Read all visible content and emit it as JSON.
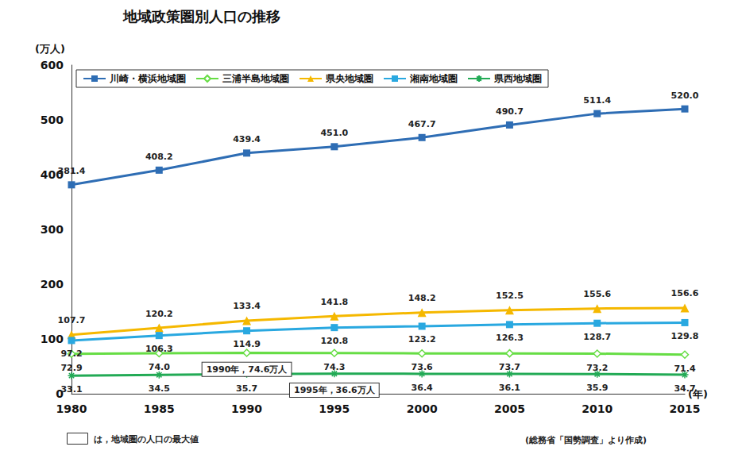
{
  "chart_data": {
    "type": "line",
    "title": "地域政策圏別人口の推移",
    "y_label": "(万人)",
    "x_label": "(年)",
    "note": "は，地域圏の人口の最大値",
    "source": "(総務省「国勢調査」より作成)",
    "categories": [
      "1980",
      "1985",
      "1990",
      "1995",
      "2000",
      "2005",
      "2010",
      "2015"
    ],
    "series": [
      {
        "name": "川崎・横浜地域圏",
        "color": "#2e6db4",
        "marker": "square",
        "values": [
          381.4,
          408.2,
          439.4,
          451.0,
          467.7,
          490.7,
          511.4,
          520.0
        ],
        "value_labels": [
          "381.4",
          "408.2",
          "439.4",
          "451.0",
          "467.7",
          "490.7",
          "511.4",
          "520.0"
        ]
      },
      {
        "name": "三浦半島地域圏",
        "color": "#66dd44",
        "marker": "diamond",
        "values": [
          72.9,
          74.0,
          74.6,
          74.3,
          73.6,
          73.7,
          73.2,
          71.4
        ],
        "value_labels": [
          "72.9",
          "74.0",
          "1990年，74.6万人",
          "74.3",
          "73.6",
          "73.7",
          "73.2",
          "71.4"
        ]
      },
      {
        "name": "県央地域圏",
        "color": "#f5b800",
        "marker": "triangle",
        "values": [
          107.7,
          120.2,
          133.4,
          141.8,
          148.2,
          152.5,
          155.6,
          156.6
        ],
        "value_labels": [
          "107.7",
          "120.2",
          "133.4",
          "141.8",
          "148.2",
          "152.5",
          "155.6",
          "156.6"
        ]
      },
      {
        "name": "湘南地域圏",
        "color": "#29a8e0",
        "marker": "square",
        "values": [
          97.2,
          106.3,
          114.9,
          120.8,
          123.2,
          126.3,
          128.7,
          129.8
        ],
        "value_labels": [
          "97.2",
          "106.3",
          "114.9",
          "120.8",
          "123.2",
          "126.3",
          "128.7",
          "129.8"
        ]
      },
      {
        "name": "県西地域圏",
        "color": "#22aa55",
        "marker": "asterisk",
        "values": [
          33.1,
          34.5,
          35.7,
          36.6,
          36.4,
          36.1,
          35.9,
          34.7
        ],
        "value_labels": [
          "33.1",
          "34.5",
          "35.7",
          "1995年，36.6万人",
          "36.4",
          "36.1",
          "35.9",
          "34.7"
        ]
      }
    ],
    "ylim": [
      0,
      600
    ],
    "yticks": [
      0,
      100,
      200,
      300,
      400,
      500,
      600
    ],
    "grid": false,
    "legend": "top-left",
    "data_labels": true
  }
}
